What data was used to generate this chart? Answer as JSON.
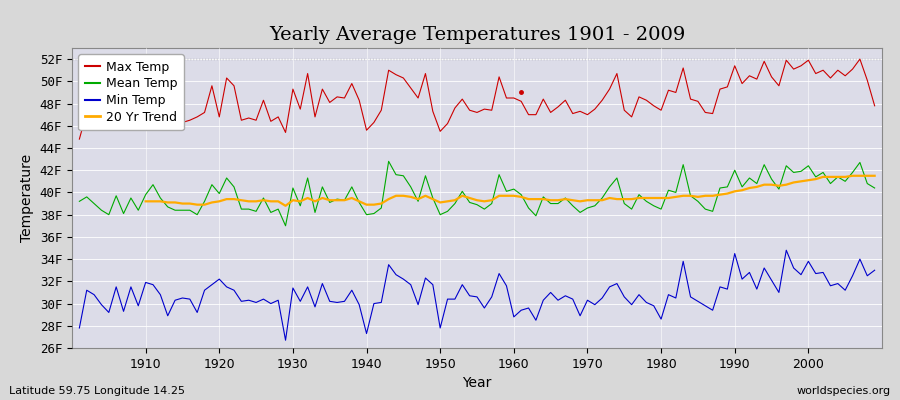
{
  "title": "Yearly Average Temperatures 1901 - 2009",
  "xlabel": "Year",
  "ylabel": "Temperature",
  "subtitle_lat": "Latitude 59.75 Longitude 14.25",
  "watermark": "worldspecies.org",
  "years": [
    1901,
    1902,
    1903,
    1904,
    1905,
    1906,
    1907,
    1908,
    1909,
    1910,
    1911,
    1912,
    1913,
    1914,
    1915,
    1916,
    1917,
    1918,
    1919,
    1920,
    1921,
    1922,
    1923,
    1924,
    1925,
    1926,
    1927,
    1928,
    1929,
    1930,
    1931,
    1932,
    1933,
    1934,
    1935,
    1936,
    1937,
    1938,
    1939,
    1940,
    1941,
    1942,
    1943,
    1944,
    1945,
    1946,
    1947,
    1948,
    1949,
    1950,
    1951,
    1952,
    1953,
    1954,
    1955,
    1956,
    1957,
    1958,
    1959,
    1960,
    1961,
    1962,
    1963,
    1964,
    1965,
    1966,
    1967,
    1968,
    1969,
    1970,
    1971,
    1972,
    1973,
    1974,
    1975,
    1976,
    1977,
    1978,
    1979,
    1980,
    1981,
    1982,
    1983,
    1984,
    1985,
    1986,
    1987,
    1988,
    1989,
    1990,
    1991,
    1992,
    1993,
    1994,
    1995,
    1996,
    1997,
    1998,
    1999,
    2000,
    2001,
    2002,
    2003,
    2004,
    2005,
    2006,
    2007,
    2008,
    2009
  ],
  "max_temp_f": [
    44.8,
    47.2,
    46.9,
    46.7,
    46.9,
    48.4,
    46.8,
    47.5,
    47.0,
    47.5,
    49.1,
    47.8,
    47.8,
    46.4,
    46.3,
    46.5,
    46.8,
    47.2,
    49.6,
    46.8,
    50.3,
    49.6,
    46.5,
    46.7,
    46.5,
    48.3,
    46.4,
    46.8,
    45.4,
    49.3,
    47.5,
    50.7,
    46.8,
    49.3,
    48.1,
    48.6,
    48.5,
    49.8,
    48.3,
    45.6,
    46.3,
    47.4,
    51.0,
    50.6,
    50.3,
    49.4,
    48.5,
    50.7,
    47.3,
    45.5,
    46.2,
    47.6,
    48.4,
    47.4,
    47.2,
    47.5,
    47.4,
    50.4,
    48.5,
    48.5,
    48.2,
    47.0,
    47.0,
    48.4,
    47.2,
    47.7,
    48.3,
    47.1,
    47.3,
    47.0,
    47.5,
    48.3,
    49.3,
    50.7,
    47.4,
    46.8,
    48.6,
    48.3,
    47.8,
    47.4,
    49.2,
    49.0,
    51.2,
    48.4,
    48.2,
    47.2,
    47.1,
    49.3,
    49.5,
    51.4,
    49.8,
    50.5,
    50.2,
    51.8,
    50.4,
    49.6,
    51.9,
    51.1,
    51.4,
    51.9,
    50.7,
    51.0,
    50.3,
    51.0,
    50.5,
    51.1,
    52.0,
    50.1,
    47.8
  ],
  "mean_temp_f": [
    39.2,
    39.6,
    39.0,
    38.4,
    38.0,
    39.7,
    38.1,
    39.5,
    38.4,
    39.8,
    40.7,
    39.5,
    38.7,
    38.4,
    38.4,
    38.4,
    38.0,
    39.2,
    40.7,
    39.9,
    41.3,
    40.5,
    38.5,
    38.5,
    38.3,
    39.5,
    38.2,
    38.5,
    37.0,
    40.4,
    38.8,
    41.3,
    38.2,
    40.5,
    39.1,
    39.4,
    39.3,
    40.5,
    39.1,
    38.0,
    38.1,
    38.6,
    42.8,
    41.6,
    41.5,
    40.5,
    39.2,
    41.5,
    39.5,
    38.0,
    38.3,
    39.0,
    40.1,
    39.1,
    38.9,
    38.5,
    39.0,
    41.6,
    40.1,
    40.3,
    39.8,
    38.6,
    37.9,
    39.6,
    39.0,
    39.0,
    39.5,
    38.8,
    38.2,
    38.6,
    38.8,
    39.5,
    40.5,
    41.3,
    39.0,
    38.5,
    39.8,
    39.2,
    38.8,
    38.5,
    40.2,
    40.0,
    42.5,
    39.7,
    39.2,
    38.5,
    38.3,
    40.4,
    40.5,
    42.0,
    40.5,
    41.3,
    40.8,
    42.5,
    41.2,
    40.3,
    42.4,
    41.8,
    41.9,
    42.4,
    41.4,
    41.8,
    40.8,
    41.4,
    41.0,
    41.8,
    42.7,
    40.8,
    40.4
  ],
  "min_temp_f": [
    27.8,
    31.2,
    30.8,
    29.9,
    29.2,
    31.5,
    29.3,
    31.5,
    29.8,
    31.9,
    31.7,
    30.8,
    28.9,
    30.3,
    30.5,
    30.4,
    29.2,
    31.2,
    31.7,
    32.2,
    31.5,
    31.2,
    30.2,
    30.3,
    30.1,
    30.4,
    30.0,
    30.3,
    26.7,
    31.4,
    30.2,
    31.5,
    29.7,
    31.8,
    30.2,
    30.1,
    30.2,
    31.2,
    29.9,
    27.3,
    30.0,
    30.1,
    33.5,
    32.6,
    32.2,
    31.7,
    29.9,
    32.3,
    31.7,
    27.8,
    30.4,
    30.4,
    31.7,
    30.7,
    30.6,
    29.6,
    30.6,
    32.7,
    31.6,
    28.8,
    29.4,
    29.6,
    28.5,
    30.3,
    31.0,
    30.3,
    30.7,
    30.4,
    28.9,
    30.3,
    29.9,
    30.5,
    31.5,
    31.8,
    30.6,
    29.9,
    30.8,
    30.1,
    29.8,
    28.6,
    30.8,
    30.5,
    33.8,
    30.6,
    30.2,
    29.8,
    29.4,
    31.5,
    31.3,
    34.5,
    32.2,
    32.8,
    31.3,
    33.2,
    32.1,
    31.0,
    34.8,
    33.2,
    32.6,
    33.8,
    32.7,
    32.8,
    31.6,
    31.8,
    31.2,
    32.5,
    34.0,
    32.5,
    33.0
  ],
  "trend_years": [
    1910,
    1911,
    1912,
    1913,
    1914,
    1915,
    1916,
    1917,
    1918,
    1919,
    1920,
    1921,
    1922,
    1923,
    1924,
    1925,
    1926,
    1927,
    1928,
    1929,
    1930,
    1931,
    1932,
    1933,
    1934,
    1935,
    1936,
    1937,
    1938,
    1939,
    1940,
    1941,
    1942,
    1943,
    1944,
    1945,
    1946,
    1947,
    1948,
    1949,
    1950,
    1951,
    1952,
    1953,
    1954,
    1955,
    1956,
    1957,
    1958,
    1959,
    1960,
    1961,
    1962,
    1963,
    1964,
    1965,
    1966,
    1967,
    1968,
    1969,
    1970,
    1971,
    1972,
    1973,
    1974,
    1975,
    1976,
    1977,
    1978,
    1979,
    1980,
    1981,
    1982,
    1983,
    1984,
    1985,
    1986,
    1987,
    1988,
    1989,
    1990,
    1991,
    1992,
    1993,
    1994,
    1995,
    1996,
    1997,
    1998,
    1999,
    2000,
    2001,
    2002,
    2003,
    2004,
    2005,
    2006,
    2007,
    2008,
    2009
  ],
  "trend_values": [
    39.2,
    39.2,
    39.2,
    39.1,
    39.1,
    39.0,
    39.0,
    38.9,
    38.9,
    39.1,
    39.2,
    39.4,
    39.4,
    39.3,
    39.2,
    39.2,
    39.3,
    39.2,
    39.2,
    38.8,
    39.3,
    39.2,
    39.5,
    39.2,
    39.5,
    39.3,
    39.3,
    39.3,
    39.5,
    39.2,
    38.9,
    38.9,
    39.0,
    39.4,
    39.7,
    39.7,
    39.6,
    39.4,
    39.7,
    39.4,
    39.1,
    39.2,
    39.3,
    39.7,
    39.5,
    39.3,
    39.2,
    39.3,
    39.7,
    39.7,
    39.7,
    39.6,
    39.4,
    39.4,
    39.4,
    39.3,
    39.3,
    39.4,
    39.3,
    39.2,
    39.3,
    39.3,
    39.3,
    39.5,
    39.4,
    39.4,
    39.4,
    39.5,
    39.5,
    39.5,
    39.5,
    39.5,
    39.6,
    39.7,
    39.7,
    39.6,
    39.7,
    39.7,
    39.8,
    39.9,
    40.1,
    40.2,
    40.4,
    40.5,
    40.7,
    40.7,
    40.6,
    40.7,
    40.9,
    41.0,
    41.1,
    41.2,
    41.4,
    41.4,
    41.4,
    41.4,
    41.5,
    41.5,
    41.5,
    41.5
  ],
  "special_point_year": 1961,
  "special_point_value": 49.0,
  "ylim_min": 26,
  "ylim_max": 53,
  "yticks": [
    26,
    28,
    30,
    32,
    34,
    36,
    38,
    40,
    42,
    44,
    46,
    48,
    50,
    52
  ],
  "dashed_line_y": 52,
  "bg_color": "#d8d8d8",
  "plot_bg_color": "#dcdce8",
  "max_color": "#cc0000",
  "mean_color": "#00aa00",
  "min_color": "#0000cc",
  "trend_color": "#ffaa00",
  "title_fontsize": 14,
  "axis_label_fontsize": 10,
  "tick_label_fontsize": 9,
  "legend_fontsize": 9
}
